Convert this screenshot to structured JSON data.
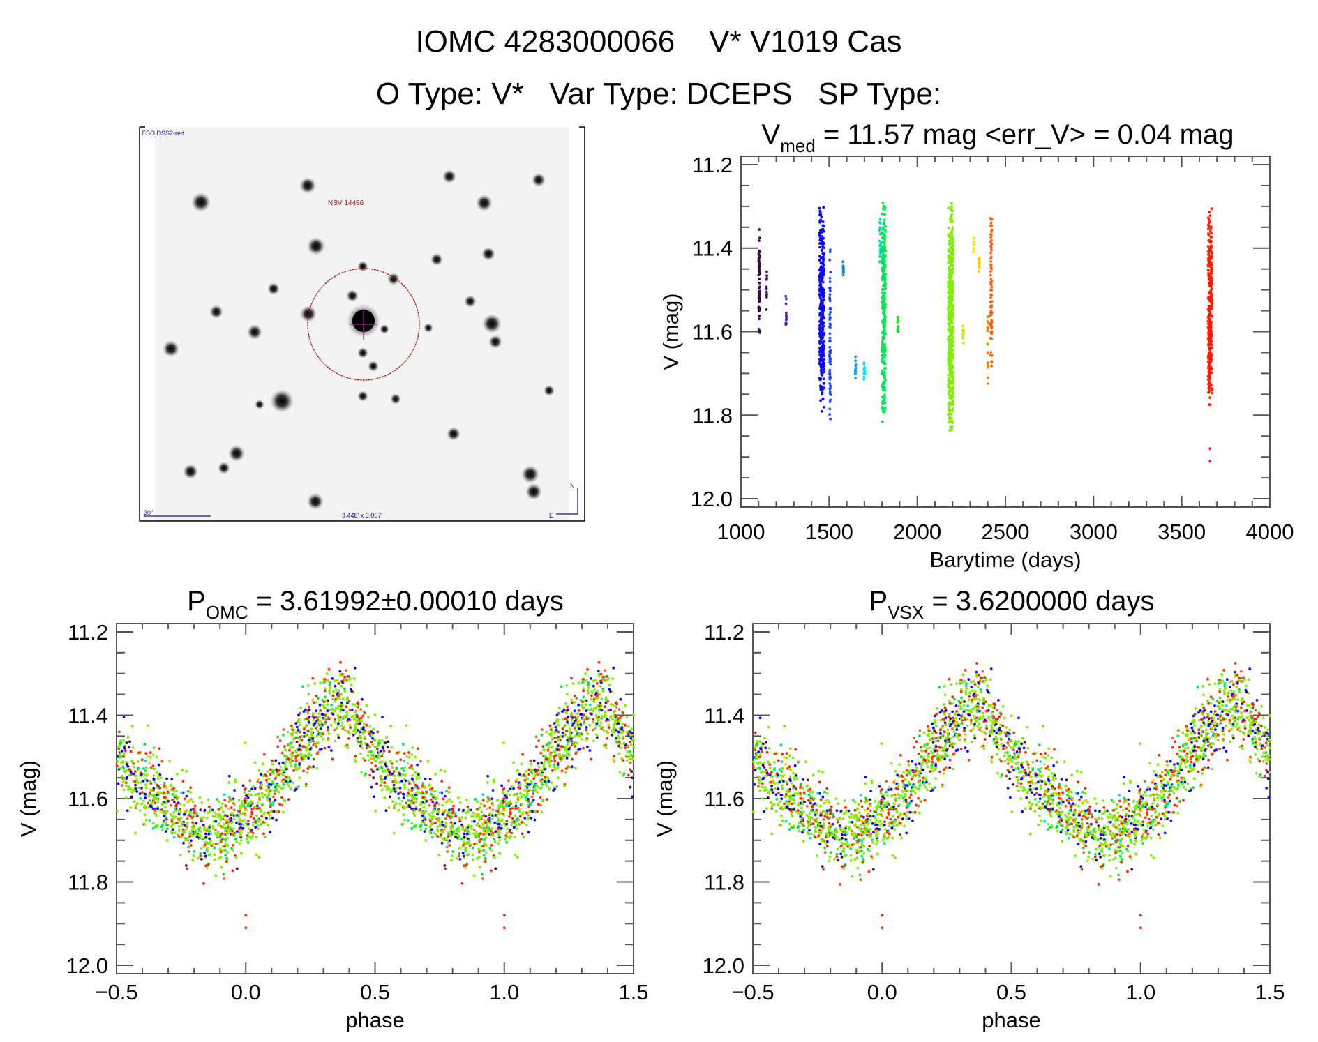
{
  "header": {
    "line1": "IOMC 4283000066    V* V1019 Cas",
    "line2": "O Type: V*   Var Type: DCEPS   SP Type:"
  },
  "finder": {
    "survey_label": "ESO DSS2-red",
    "object_label": "NSV 14486",
    "scale_label": "30\"",
    "size_label": "3.448' x 3.057'",
    "north_label": "N",
    "east_label": "E"
  },
  "chart_data": [
    {
      "type": "scatter",
      "title_main": "V",
      "title_sub": "med",
      "title_rest": " = 11.57 mag <err_V> = 0.04 mag",
      "xlabel": "Barytime (days)",
      "ylabel": "V (mag)",
      "xlim": [
        1000,
        4000
      ],
      "ylim": [
        12.0,
        11.2
      ],
      "xticks": [
        "1000",
        "1500",
        "2000",
        "2500",
        "3000",
        "3500",
        "4000"
      ],
      "yticks": [
        "11.2",
        "11.4",
        "11.6",
        "11.8",
        "12.0"
      ],
      "seasons": [
        {
          "t": [
            1100,
            1108
          ],
          "v": [
            11.32,
            11.65
          ],
          "color": "#3b0a45"
        },
        {
          "t": [
            1143,
            1147
          ],
          "v": [
            11.45,
            11.56
          ],
          "color": "#4a0c80"
        },
        {
          "t": [
            1253,
            1258
          ],
          "v": [
            11.5,
            11.6
          ],
          "color": "#5a14c8"
        },
        {
          "t": [
            1445,
            1472
          ],
          "v": [
            11.29,
            11.8
          ],
          "color": "#0a0aff"
        },
        {
          "t": [
            1502,
            1508
          ],
          "v": [
            11.38,
            11.84
          ],
          "color": "#1446ff"
        },
        {
          "t": [
            1578,
            1583
          ],
          "v": [
            11.43,
            11.47
          ],
          "color": "#0a80ff"
        },
        {
          "t": [
            1648,
            1652
          ],
          "v": [
            11.65,
            11.73
          ],
          "color": "#00aaff"
        },
        {
          "t": [
            1697,
            1702
          ],
          "v": [
            11.67,
            11.73
          ],
          "color": "#00ddff"
        },
        {
          "t": [
            1785,
            1792
          ],
          "v": [
            11.32,
            11.45
          ],
          "color": "#00e0c0"
        },
        {
          "t": [
            1800,
            1820
          ],
          "v": [
            11.28,
            11.83
          ],
          "color": "#00e850"
        },
        {
          "t": [
            1887,
            1892
          ],
          "v": [
            11.55,
            11.61
          ],
          "color": "#20e020"
        },
        {
          "t": [
            2175,
            2205
          ],
          "v": [
            11.27,
            11.86
          ],
          "color": "#7cf000"
        },
        {
          "t": [
            2257,
            2263
          ],
          "v": [
            11.58,
            11.63
          ],
          "color": "#c8f000"
        },
        {
          "t": [
            2318,
            2323
          ],
          "v": [
            11.36,
            11.42
          ],
          "color": "#f5f000"
        },
        {
          "t": [
            2348,
            2353
          ],
          "v": [
            11.41,
            11.47
          ],
          "color": "#ffcc00"
        },
        {
          "t": [
            2398,
            2403
          ],
          "v": [
            11.55,
            11.73
          ],
          "color": "#ff8a00"
        },
        {
          "t": [
            2415,
            2423
          ],
          "v": [
            11.3,
            11.73
          ],
          "color": "#ff6010"
        },
        {
          "t": [
            3650,
            3672
          ],
          "v": [
            11.28,
            11.8
          ],
          "color": "#ff1a00"
        }
      ],
      "outliers": [
        {
          "t": 3661,
          "v": 11.88,
          "color": "#ff1a00"
        },
        {
          "t": 3661,
          "v": 11.91,
          "color": "#ff1a00"
        }
      ]
    },
    {
      "type": "scatter",
      "title_main": "P",
      "title_sub": "OMC",
      "title_rest": " = 3.61992±0.00010 days",
      "xlabel": "phase",
      "ylabel": "V (mag)",
      "xlim": [
        -0.5,
        1.5
      ],
      "ylim": [
        12.0,
        11.2
      ],
      "xticks": [
        "−0.5",
        "0.0",
        "0.5",
        "1.0",
        "1.5"
      ],
      "yticks": [
        "11.2",
        "11.4",
        "11.6",
        "11.8",
        "12.0"
      ],
      "mean_curve": [
        [
          0,
          11.63
        ],
        [
          0.05,
          11.62
        ],
        [
          0.1,
          11.58
        ],
        [
          0.15,
          11.53
        ],
        [
          0.2,
          11.48
        ],
        [
          0.25,
          11.44
        ],
        [
          0.3,
          11.4
        ],
        [
          0.37,
          11.37
        ],
        [
          0.42,
          11.42
        ],
        [
          0.5,
          11.49
        ],
        [
          0.6,
          11.56
        ],
        [
          0.7,
          11.62
        ],
        [
          0.8,
          11.67
        ],
        [
          0.85,
          11.69
        ],
        [
          0.9,
          11.68
        ],
        [
          0.95,
          11.66
        ]
      ],
      "series_colors": [
        "#7cf000",
        "#ff2a00",
        "#0a0aff",
        "#00e850",
        "#ff6010",
        "#3b0a45",
        "#00e0e0",
        "#ffcc00"
      ]
    },
    {
      "type": "scatter",
      "title_main": "P",
      "title_sub": "VSX",
      "title_rest": " = 3.6200000 days",
      "xlabel": "phase",
      "ylabel": "V (mag)",
      "xlim": [
        -0.5,
        1.5
      ],
      "ylim": [
        12.0,
        11.2
      ],
      "xticks": [
        "−0.5",
        "0.0",
        "0.5",
        "1.0",
        "1.5"
      ],
      "yticks": [
        "11.2",
        "11.4",
        "11.6",
        "11.8",
        "12.0"
      ],
      "mean_curve": [
        [
          0,
          11.63
        ],
        [
          0.05,
          11.62
        ],
        [
          0.1,
          11.58
        ],
        [
          0.15,
          11.53
        ],
        [
          0.2,
          11.48
        ],
        [
          0.25,
          11.44
        ],
        [
          0.3,
          11.4
        ],
        [
          0.37,
          11.37
        ],
        [
          0.42,
          11.42
        ],
        [
          0.5,
          11.49
        ],
        [
          0.6,
          11.56
        ],
        [
          0.7,
          11.62
        ],
        [
          0.8,
          11.67
        ],
        [
          0.85,
          11.69
        ],
        [
          0.9,
          11.68
        ],
        [
          0.95,
          11.66
        ]
      ],
      "series_colors": [
        "#7cf000",
        "#ff2a00",
        "#0a0aff",
        "#00e850",
        "#ff6010",
        "#3b0a45",
        "#00e0e0",
        "#ffcc00"
      ]
    }
  ]
}
